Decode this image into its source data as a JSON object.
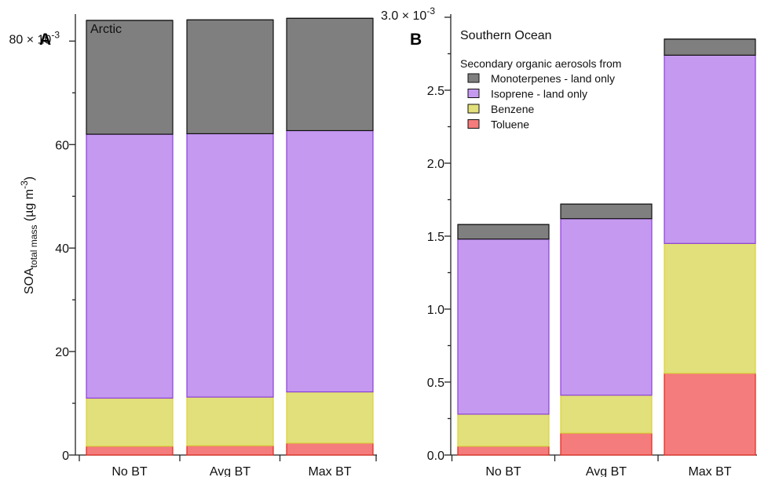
{
  "chart_data": [
    {
      "type": "bar",
      "stacked": true,
      "panel": "A",
      "title": "Arctic",
      "categories": [
        "No BT",
        "Avg BT",
        "Max BT"
      ],
      "ylabel_main": "SOA",
      "ylabel_sub": "total mass",
      "ylabel_units_open": " (µg m",
      "ylabel_units_exp": "-3",
      "ylabel_units_close": ")",
      "ytick_labels": [
        "0",
        "20",
        "40",
        "60",
        "80 × 10"
      ],
      "ytick_exponent": "-3",
      "ylim": [
        0,
        0.0855
      ],
      "yticks": [
        0,
        0.02,
        0.04,
        0.06,
        0.08
      ],
      "series": [
        {
          "key": "toluene",
          "values": [
            0.0017,
            0.0018,
            0.0023
          ],
          "color": "#f47c7c",
          "edge": "#e0261c"
        },
        {
          "key": "benzene",
          "values": [
            0.0093,
            0.0094,
            0.0099
          ],
          "color": "#e2e07a",
          "edge": "#d8d23a"
        },
        {
          "key": "isoprene",
          "values": [
            0.051,
            0.0509,
            0.0505
          ],
          "color": "#c599f0",
          "edge": "#8a3fd8"
        },
        {
          "key": "monoterpenes",
          "values": [
            0.022,
            0.022,
            0.0217
          ],
          "color": "#7f7f7f",
          "edge": "#111111"
        }
      ]
    },
    {
      "type": "bar",
      "stacked": true,
      "panel": "B",
      "title": "Southern Ocean",
      "categories": [
        "No BT",
        "Avg BT",
        "Max BT"
      ],
      "ytick_labels": [
        "0.0",
        "0.5",
        "1.0",
        "1.5",
        "2.0",
        "2.5",
        "3.0 × 10"
      ],
      "ytick_exponent": "-3",
      "ylim": [
        0,
        0.003
      ],
      "yticks": [
        0,
        0.0005,
        0.001,
        0.0015,
        0.002,
        0.0025,
        0.003
      ],
      "legend": {
        "title": "Secondary organic aerosols from",
        "placement": "top-left",
        "entries": [
          {
            "key": "monoterpenes",
            "label": "Monoterpenes - land only"
          },
          {
            "key": "isoprene",
            "label": "Isoprene - land only"
          },
          {
            "key": "benzene",
            "label": "Benzene"
          },
          {
            "key": "toluene",
            "label": "Toluene"
          }
        ]
      },
      "series": [
        {
          "key": "toluene",
          "values": [
            6e-05,
            0.00015,
            0.00056
          ],
          "color": "#f47c7c",
          "edge": "#e0261c"
        },
        {
          "key": "benzene",
          "values": [
            0.00022,
            0.00026,
            0.00089
          ],
          "color": "#e2e07a",
          "edge": "#d8d23a"
        },
        {
          "key": "isoprene",
          "values": [
            0.0012,
            0.00121,
            0.00129
          ],
          "color": "#c599f0",
          "edge": "#8a3fd8"
        },
        {
          "key": "monoterpenes",
          "values": [
            0.0001,
            0.0001,
            0.00011
          ],
          "color": "#7f7f7f",
          "edge": "#111111"
        }
      ]
    }
  ]
}
